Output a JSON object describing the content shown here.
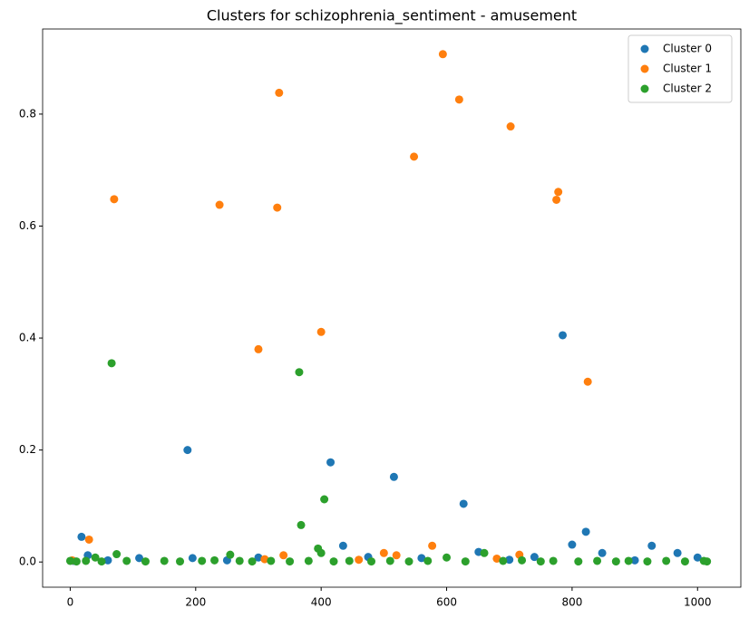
{
  "chart_data": {
    "type": "scatter",
    "title": "Clusters for schizophrenia_sentiment - amusement",
    "xlim": [
      -44,
      1069
    ],
    "ylim": [
      -0.045,
      0.952
    ],
    "xticks": [
      0,
      200,
      400,
      600,
      800,
      1000
    ],
    "yticks": [
      {
        "value": 0,
        "label": "0.0"
      },
      0.2,
      0.4,
      0.6,
      0.8
    ],
    "legend": "upper right",
    "series": [
      {
        "name": "Cluster 0",
        "color": "#1f77b4",
        "x": [
          18,
          28,
          187,
          415,
          435,
          516,
          627,
          651,
          785,
          800,
          822,
          848,
          927,
          968,
          1000,
          110,
          195,
          300,
          475,
          560,
          740,
          5,
          60,
          250,
          700,
          900
        ],
        "values": [
          0.045,
          0.012,
          0.2,
          0.178,
          0.029,
          0.152,
          0.104,
          0.018,
          0.405,
          0.031,
          0.054,
          0.016,
          0.029,
          0.016,
          0.008,
          0.007,
          0.007,
          0.008,
          0.009,
          0.007,
          0.009,
          0.002,
          0.003,
          0.003,
          0.004,
          0.003
        ]
      },
      {
        "name": "Cluster 1",
        "color": "#ff7f0e",
        "x": [
          30,
          70,
          238,
          300,
          330,
          333,
          340,
          400,
          500,
          520,
          548,
          577,
          594,
          620,
          702,
          716,
          775,
          778,
          825,
          310,
          460,
          680,
          3
        ],
        "values": [
          0.04,
          0.648,
          0.638,
          0.38,
          0.633,
          0.838,
          0.012,
          0.411,
          0.016,
          0.012,
          0.724,
          0.029,
          0.907,
          0.826,
          0.778,
          0.013,
          0.647,
          0.661,
          0.322,
          0.005,
          0.004,
          0.006,
          0.003
        ]
      },
      {
        "name": "Cluster 2",
        "color": "#2ca02c",
        "x": [
          66,
          74,
          365,
          368,
          395,
          400,
          405,
          255,
          660,
          40,
          600,
          0,
          10,
          25,
          50,
          90,
          120,
          150,
          175,
          210,
          230,
          270,
          290,
          320,
          350,
          380,
          420,
          445,
          480,
          510,
          540,
          570,
          630,
          690,
          720,
          750,
          770,
          810,
          840,
          870,
          890,
          920,
          950,
          980,
          1010,
          1015
        ],
        "values": [
          0.355,
          0.014,
          0.339,
          0.066,
          0.024,
          0.016,
          0.112,
          0.013,
          0.016,
          0.008,
          0.008,
          0.002,
          0.001,
          0.002,
          0.001,
          0.002,
          0.001,
          0.002,
          0.001,
          0.002,
          0.003,
          0.002,
          0.001,
          0.002,
          0.001,
          0.002,
          0.001,
          0.002,
          0.001,
          0.002,
          0.001,
          0.002,
          0.001,
          0.002,
          0.003,
          0.001,
          0.002,
          0.001,
          0.002,
          0.001,
          0.002,
          0.001,
          0.002,
          0.001,
          0.002,
          0.001
        ]
      }
    ]
  }
}
